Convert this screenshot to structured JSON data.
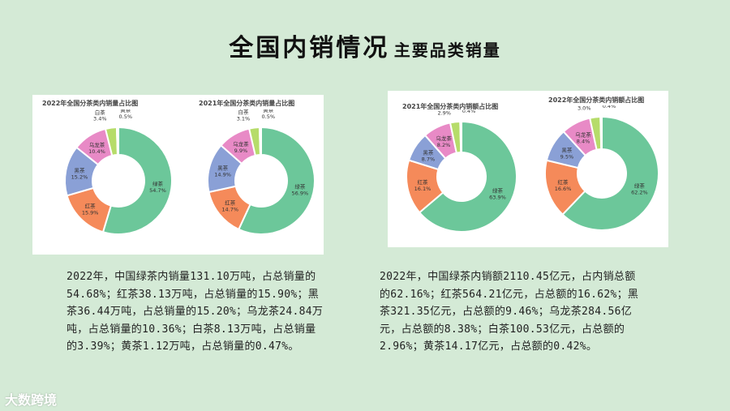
{
  "page": {
    "title": "全国内销情况",
    "subtitle": "主要品类销量",
    "watermark": "大数跨境",
    "colors": {
      "绿茶": "#6cc79a",
      "红茶": "#f58a5a",
      "黑茶": "#8aa0d6",
      "乌龙茶": "#e88ac6",
      "白茶": "#b6dc6a",
      "黄茶": "#e8d95a"
    }
  },
  "descriptions": {
    "left": "2022年，中国绿茶内销量131.10万吨，占总销量的54.68%；红茶38.13万吨，占总销量的15.90%；黑茶36.44万吨，占总销量的15.20%；乌龙茶24.84万吨，占总销量的10.36%；白茶8.13万吨，占总销量的3.39%；黄茶1.12万吨，占总销量的0.47%。",
    "right": "2022年，中国绿茶内销额2110.45亿元，占内销总额的62.16%；红茶564.21亿元，占总额的16.62%；黑茶321.35亿元，占总额的9.46%；乌龙茶284.56亿元，占总额的8.38%；白茶100.53亿元，占总额的2.96%；黄茶14.17亿元，占总额的0.42%。"
  },
  "chart_data": [
    {
      "type": "pie",
      "title": "2022年全国分茶类内销量占比图",
      "categories": [
        "绿茶",
        "红茶",
        "黑茶",
        "乌龙茶",
        "白茶",
        "黄茶"
      ],
      "values": [
        54.7,
        15.9,
        15.2,
        10.4,
        3.4,
        0.5
      ],
      "labels": [
        "54.7%",
        "15.9%",
        "15.2%",
        "10.4%",
        "3.4%",
        "0.5%"
      ]
    },
    {
      "type": "pie",
      "title": "2021年全国分茶类内销量占比图",
      "categories": [
        "绿茶",
        "红茶",
        "黑茶",
        "乌龙茶",
        "白茶",
        "黄茶"
      ],
      "values": [
        56.9,
        14.7,
        14.9,
        9.9,
        3.1,
        0.5
      ],
      "labels": [
        "56.9%",
        "14.7%",
        "14.9%",
        "9.9%",
        "3.1%",
        "0.5%"
      ]
    },
    {
      "type": "pie",
      "title": "2021年全国分茶类内销额占比图",
      "categories": [
        "绿茶",
        "红茶",
        "黑茶",
        "乌龙茶",
        "白茶",
        "黄茶"
      ],
      "values": [
        63.9,
        16.1,
        8.7,
        8.2,
        2.9,
        0.4
      ],
      "labels": [
        "63.9%",
        "16.1%",
        "8.7%",
        "8.2%",
        "2.9%",
        "0.4%"
      ]
    },
    {
      "type": "pie",
      "title": "2022年全国分茶类内销额占比图",
      "categories": [
        "绿茶",
        "红茶",
        "黑茶",
        "乌龙茶",
        "白茶",
        "黄茶"
      ],
      "values": [
        62.2,
        16.6,
        9.5,
        8.4,
        3.0,
        0.4
      ],
      "labels": [
        "62.2%",
        "16.6%",
        "9.5%",
        "8.4%",
        "3.0%",
        "0.4%"
      ]
    }
  ]
}
